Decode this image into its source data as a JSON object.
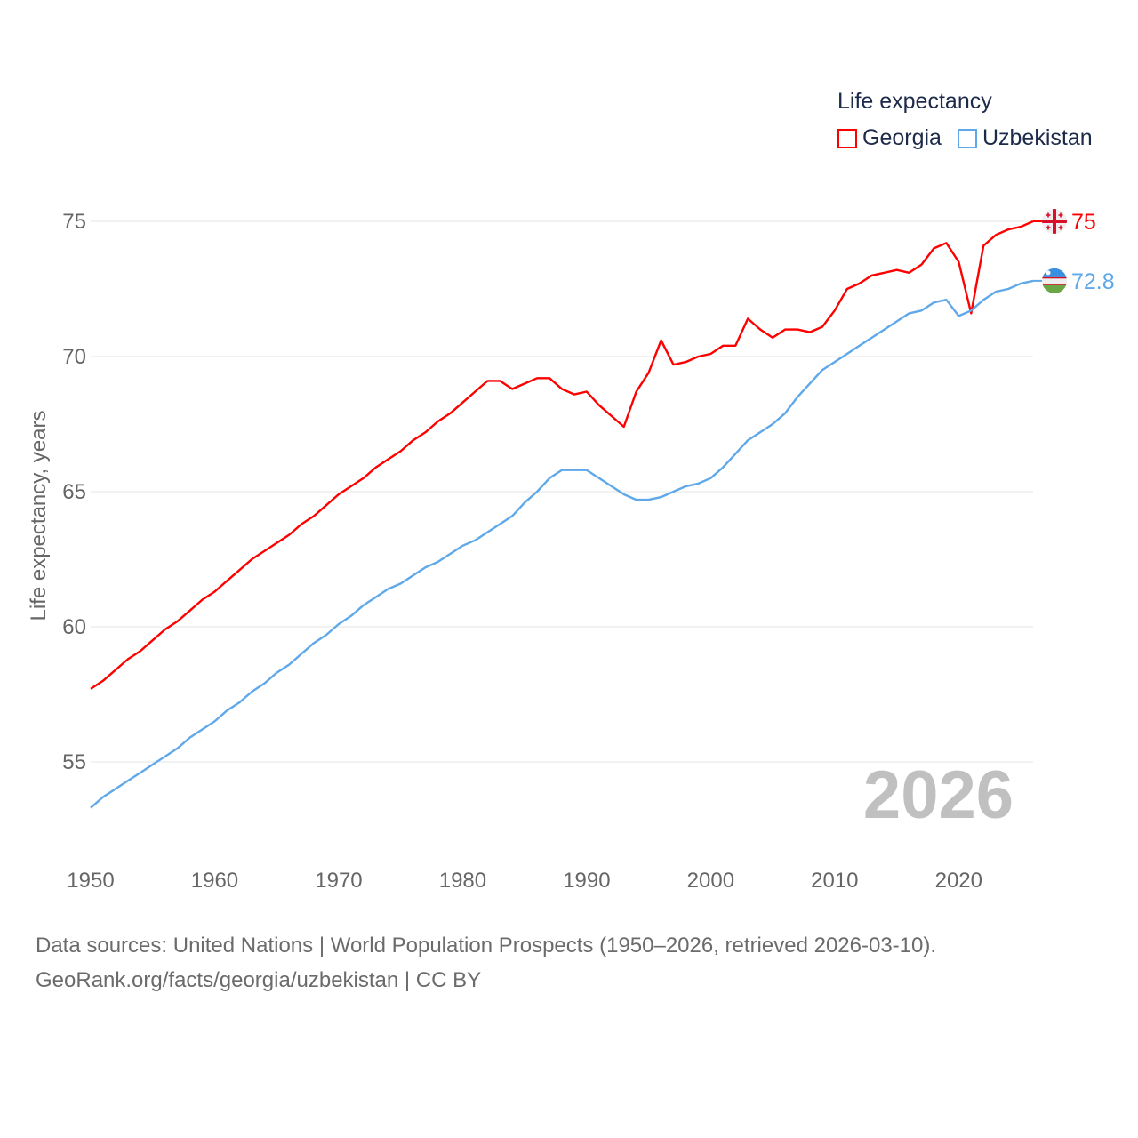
{
  "legend": {
    "title": "Life expectancy"
  },
  "footer": {
    "line1": "Data sources: United Nations | World Population Prospects (1950–2026, retrieved 2026-03-10).",
    "line2": "GeoRank.org/facts/georgia/uzbekistan | CC BY"
  },
  "chart_data": {
    "type": "line",
    "title": "",
    "xlabel": "",
    "ylabel": "Life expectancy, years",
    "year_label": "2026",
    "xlim": [
      1950,
      2026
    ],
    "ylim": [
      52.6,
      76
    ],
    "x_ticks": [
      "1950",
      "1960",
      "1970",
      "1980",
      "1990",
      "2000",
      "2010",
      "2020"
    ],
    "y_ticks": [
      "55",
      "60",
      "65",
      "70",
      "75"
    ],
    "grid": true,
    "legend_position": "top-right",
    "x_start": 1950,
    "series": [
      {
        "name": "Georgia",
        "color": "#ff0000",
        "end_label": "75",
        "flag_icon": "georgia-flag-icon",
        "values": [
          57.7,
          58.0,
          58.4,
          58.8,
          59.1,
          59.5,
          59.9,
          60.2,
          60.6,
          61.0,
          61.3,
          61.7,
          62.1,
          62.5,
          62.8,
          63.1,
          63.4,
          63.8,
          64.1,
          64.5,
          64.9,
          65.2,
          65.5,
          65.9,
          66.2,
          66.5,
          66.9,
          67.2,
          67.6,
          67.9,
          68.3,
          68.7,
          69.1,
          69.1,
          68.8,
          69.0,
          69.2,
          69.2,
          68.8,
          68.6,
          68.7,
          68.2,
          67.8,
          67.4,
          68.7,
          69.4,
          70.6,
          69.7,
          69.8,
          70.0,
          70.1,
          70.4,
          70.4,
          71.4,
          71.0,
          70.7,
          71.0,
          71.0,
          70.9,
          71.1,
          71.7,
          72.5,
          72.7,
          73.0,
          73.1,
          73.2,
          73.1,
          73.4,
          74.0,
          74.2,
          73.5,
          71.6,
          74.1,
          74.5,
          74.7,
          74.8,
          75.0
        ]
      },
      {
        "name": "Uzbekistan",
        "color": "#5fa8ea",
        "end_label": "72.8",
        "flag_icon": "uzbekistan-flag-icon",
        "values": [
          53.3,
          53.7,
          54.0,
          54.3,
          54.6,
          54.9,
          55.2,
          55.5,
          55.9,
          56.2,
          56.5,
          56.9,
          57.2,
          57.6,
          57.9,
          58.3,
          58.6,
          59.0,
          59.4,
          59.7,
          60.1,
          60.4,
          60.8,
          61.1,
          61.4,
          61.6,
          61.9,
          62.2,
          62.4,
          62.7,
          63.0,
          63.2,
          63.5,
          63.8,
          64.1,
          64.6,
          65.0,
          65.5,
          65.8,
          65.8,
          65.8,
          65.5,
          65.2,
          64.9,
          64.7,
          64.7,
          64.8,
          65.0,
          65.2,
          65.3,
          65.5,
          65.9,
          66.4,
          66.9,
          67.2,
          67.5,
          67.9,
          68.5,
          69.0,
          69.5,
          69.8,
          70.1,
          70.4,
          70.7,
          71.0,
          71.3,
          71.6,
          71.7,
          72.0,
          72.1,
          71.5,
          71.7,
          72.1,
          72.4,
          72.5,
          72.7,
          72.8
        ]
      }
    ]
  }
}
